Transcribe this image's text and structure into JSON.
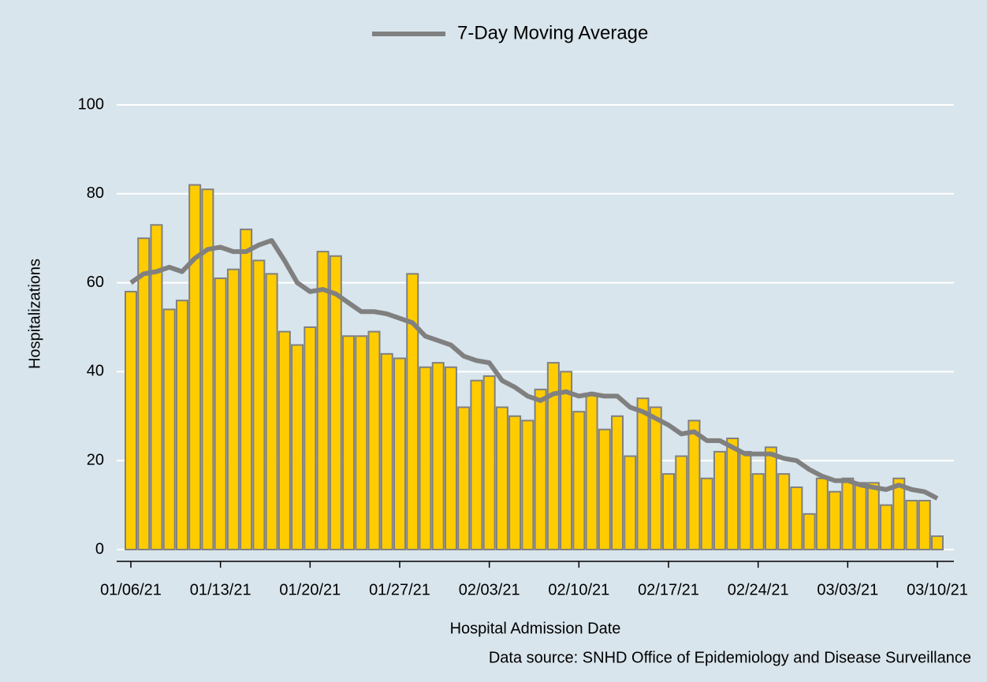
{
  "chart_data": {
    "type": "bar",
    "categories": [
      "01/06/21",
      null,
      null,
      null,
      null,
      null,
      null,
      "01/13/21",
      null,
      null,
      null,
      null,
      null,
      null,
      "01/20/21",
      null,
      null,
      null,
      null,
      null,
      null,
      "01/27/21",
      null,
      null,
      null,
      null,
      null,
      null,
      "02/03/21",
      null,
      null,
      null,
      null,
      null,
      null,
      "02/10/21",
      null,
      null,
      null,
      null,
      null,
      null,
      "02/17/21",
      null,
      null,
      null,
      null,
      null,
      null,
      "02/24/21",
      null,
      null,
      null,
      null,
      null,
      null,
      "03/03/21",
      null,
      null,
      null,
      null,
      null,
      null,
      "03/10/21"
    ],
    "series": [
      {
        "type": "bar",
        "color": "#ffcc00",
        "edge_color": "#808080",
        "values": [
          58,
          70,
          73,
          54,
          56,
          82,
          81,
          61,
          63,
          72,
          65,
          62,
          49,
          46,
          50,
          67,
          66,
          48,
          48,
          49,
          44,
          43,
          62,
          41,
          42,
          41,
          32,
          38,
          39,
          32,
          30,
          29,
          36,
          42,
          40,
          31,
          35,
          27,
          30,
          21,
          34,
          32,
          17,
          21,
          29,
          16,
          22,
          25,
          22,
          17,
          23,
          17,
          14,
          8,
          16,
          13,
          16,
          15,
          15,
          10,
          16,
          11,
          11,
          3
        ]
      },
      {
        "type": "line",
        "name": "7-Day Moving Average",
        "color": "#808080",
        "values": [
          60,
          62,
          62.5,
          63.5,
          62.5,
          65.5,
          67.5,
          68,
          67,
          67,
          68.5,
          69.5,
          65,
          60,
          58,
          58.5,
          57.5,
          55.5,
          53.5,
          53.5,
          53,
          52,
          51,
          48,
          47,
          46,
          43.5,
          42.5,
          42,
          38,
          36.5,
          34.5,
          33.5,
          35,
          35.5,
          34.5,
          35,
          34.5,
          34.5,
          32,
          31,
          29.5,
          28,
          26,
          26.5,
          24.5,
          24.5,
          23,
          21.5,
          21.5,
          21.5,
          20.5,
          20,
          18,
          16.5,
          15.5,
          15.5,
          14.5,
          14,
          13.5,
          14.5,
          13.5,
          13,
          11.5
        ]
      }
    ],
    "ylim": [
      0,
      100
    ],
    "yticks": [
      0,
      20,
      40,
      60,
      80,
      100
    ],
    "grid": true,
    "legend": "top",
    "x_label": "Hospital Admission Date",
    "y_label": "Hospitalizations",
    "source": "Data source: SNHD Office of Epidemiology and Disease Surveillance"
  }
}
